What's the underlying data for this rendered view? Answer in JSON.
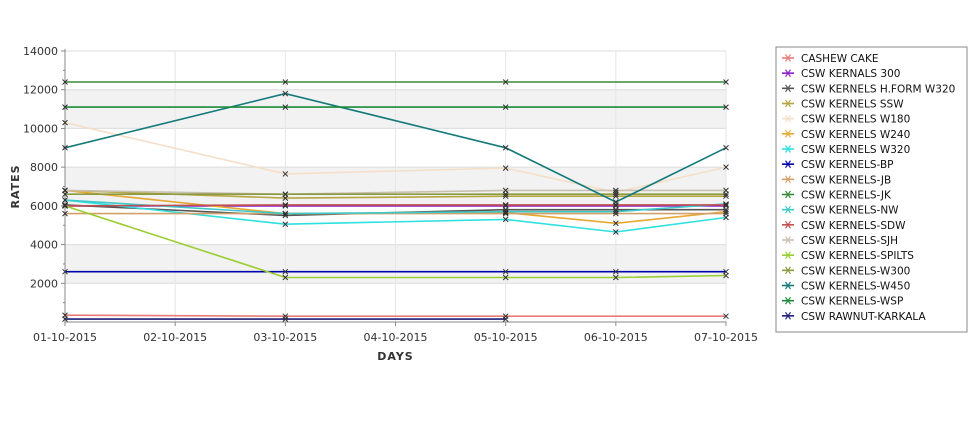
{
  "chart_data": {
    "type": "line",
    "xlabel": "DAYS",
    "ylabel": "RATES",
    "categories": [
      "01-10-2015",
      "02-10-2015",
      "03-10-2015",
      "04-10-2015",
      "05-10-2015",
      "06-10-2015",
      "07-10-2015"
    ],
    "ylim": [
      0,
      14000
    ],
    "yticks": [
      2000,
      4000,
      6000,
      8000,
      10000,
      12000,
      14000
    ],
    "ytick_labels": [
      "2000",
      "4000",
      "6000",
      "8000",
      "10000",
      "12000",
      "14000"
    ],
    "grid": true,
    "legend_position": "right",
    "series": [
      {
        "name": "CASHEW CAKE",
        "color": "#e97a7a",
        "values": [
          350,
          null,
          300,
          null,
          300,
          null,
          300
        ]
      },
      {
        "name": "CSW KERNALS 300",
        "color": "#8b1fc9",
        "values": [
          6000,
          null,
          6000,
          null,
          6000,
          6000,
          6000
        ]
      },
      {
        "name": "CSW KERNELS H.FORM W320",
        "color": "#555555",
        "values": [
          6050,
          null,
          5500,
          null,
          5800,
          5800,
          5800
        ]
      },
      {
        "name": "CSW KERNELS SSW",
        "color": "#b5a642",
        "values": [
          6800,
          null,
          6400,
          null,
          6500,
          6500,
          6500
        ]
      },
      {
        "name": "CSW KERNELS W180",
        "color": "#f5dfc9",
        "values": [
          10300,
          null,
          7650,
          null,
          7950,
          6700,
          8000
        ]
      },
      {
        "name": "CSW KERNELS W240",
        "color": "#e6a832",
        "values": [
          6800,
          null,
          5600,
          null,
          5650,
          5100,
          5700
        ]
      },
      {
        "name": "CSW KERNELS W320",
        "color": "#2fe0e0",
        "values": [
          6300,
          null,
          5050,
          null,
          5300,
          4650,
          5400
        ]
      },
      {
        "name": "CSW KERNELS-BP",
        "color": "#0000aa",
        "values": [
          2600,
          null,
          2600,
          null,
          2600,
          2600,
          2600
        ]
      },
      {
        "name": "CSW KERNELS-JB",
        "color": "#d2a06a",
        "values": [
          5600,
          null,
          5600,
          null,
          5600,
          5600,
          5600
        ]
      },
      {
        "name": "CSW KERNELS-JK",
        "color": "#3c8c3c",
        "values": [
          12400,
          null,
          12400,
          null,
          12400,
          null,
          12400
        ]
      },
      {
        "name": "CSW KERNELS-NW",
        "color": "#3fc8c8",
        "values": [
          6300,
          null,
          5600,
          null,
          5700,
          5700,
          6100
        ]
      },
      {
        "name": "CSW KERNELS-SDW",
        "color": "#c05050",
        "values": [
          6000,
          null,
          6050,
          null,
          6050,
          6050,
          6050
        ]
      },
      {
        "name": "CSW KERNELS-SJH",
        "color": "#c8c0b0",
        "values": [
          6800,
          null,
          6600,
          null,
          6800,
          6800,
          6800
        ]
      },
      {
        "name": "CSW KERNELS-SPILTS",
        "color": "#9acd32",
        "values": [
          6000,
          null,
          2300,
          null,
          2300,
          2300,
          2400
        ]
      },
      {
        "name": "CSW KERNELS-W300",
        "color": "#8a9a40",
        "values": [
          6600,
          null,
          6600,
          null,
          6600,
          6600,
          6600
        ]
      },
      {
        "name": "CSW KERNELS-W450",
        "color": "#157a7a",
        "values": [
          9000,
          null,
          11800,
          null,
          9000,
          6200,
          9000
        ]
      },
      {
        "name": "CSW KERNELS-WSP",
        "color": "#1a8a3a",
        "values": [
          11100,
          null,
          11100,
          null,
          11100,
          null,
          11100
        ]
      },
      {
        "name": "CSW RAWNUT-KARKALA",
        "color": "#1e1e7a",
        "values": [
          150,
          null,
          150,
          null,
          150,
          null,
          null
        ]
      }
    ]
  }
}
